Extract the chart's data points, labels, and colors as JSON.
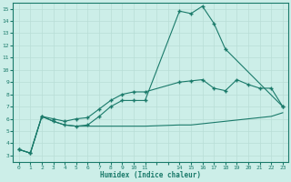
{
  "xlabel": "Humidex (Indice chaleur)",
  "bg_color": "#cceee8",
  "grid_color": "#b8ddd6",
  "line_color": "#1a7a6a",
  "ylim": [
    2.5,
    15.5
  ],
  "yticks": [
    3,
    4,
    5,
    6,
    7,
    8,
    9,
    10,
    11,
    12,
    13,
    14,
    15
  ],
  "xtick_labels": [
    "0",
    "1",
    "2",
    "3",
    "4",
    "5",
    "6",
    "7",
    "8",
    "9",
    "10",
    "11",
    "",
    "",
    "14",
    "15",
    "16",
    "17",
    "18",
    "19",
    "20",
    "21",
    "22",
    "23"
  ],
  "line1_x": [
    0,
    1,
    2,
    3,
    4,
    5,
    6,
    7,
    8,
    9,
    10,
    11,
    14,
    15,
    16,
    17,
    18,
    19,
    20,
    21,
    22,
    23
  ],
  "line1_y": [
    3.5,
    3.2,
    6.2,
    5.8,
    5.5,
    5.4,
    5.4,
    5.4,
    5.4,
    5.4,
    5.4,
    5.4,
    5.5,
    5.5,
    5.6,
    5.7,
    5.8,
    5.9,
    6.0,
    6.1,
    6.2,
    6.5
  ],
  "line2_x": [
    0,
    1,
    2,
    3,
    4,
    5,
    6,
    7,
    8,
    9,
    10,
    11,
    14,
    15,
    16,
    17,
    18,
    19,
    20,
    21,
    22,
    23
  ],
  "line2_y": [
    3.5,
    3.2,
    6.2,
    6.0,
    5.8,
    6.0,
    6.1,
    6.8,
    7.5,
    8.0,
    8.2,
    8.2,
    9.0,
    9.1,
    9.2,
    8.5,
    8.3,
    9.2,
    8.8,
    8.5,
    8.5,
    7.0
  ],
  "line3_x": [
    0,
    1,
    2,
    3,
    4,
    5,
    6,
    7,
    8,
    9,
    10,
    11,
    14,
    15,
    16,
    17,
    18,
    23
  ],
  "line3_y": [
    3.5,
    3.2,
    6.2,
    5.8,
    5.5,
    5.4,
    5.5,
    6.2,
    7.0,
    7.5,
    7.5,
    7.5,
    14.8,
    14.6,
    15.2,
    13.8,
    11.7,
    7.0
  ],
  "marker": "+",
  "markersize": 2.5,
  "linewidth": 0.8,
  "tick_fontsize": 4.5,
  "xlabel_fontsize": 5.5
}
